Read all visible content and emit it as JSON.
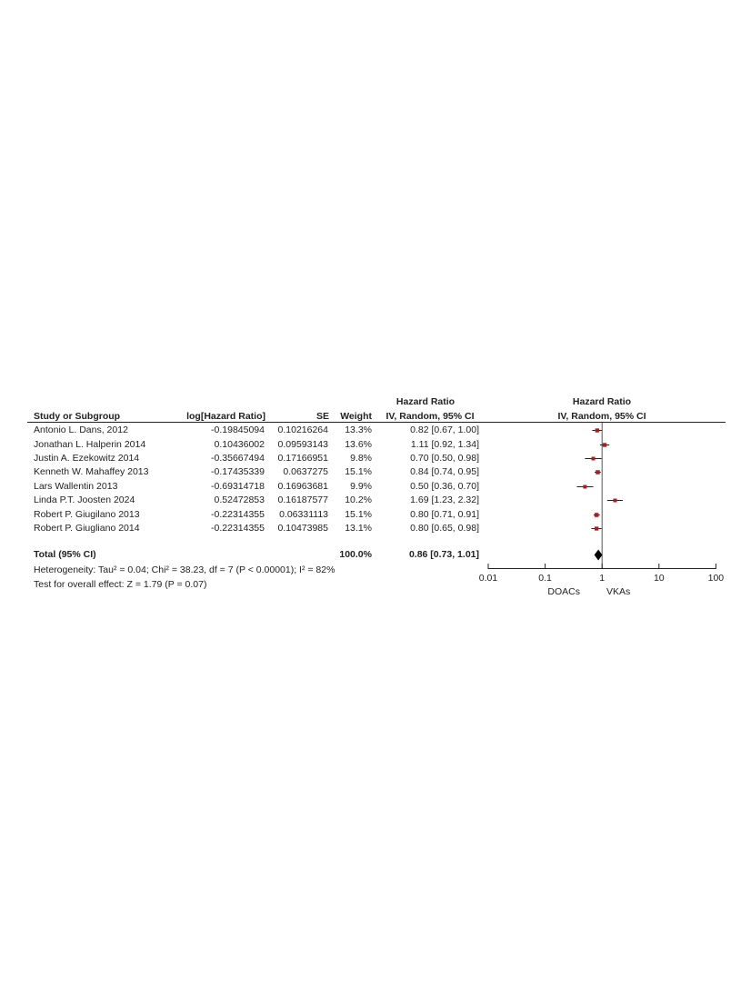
{
  "headers": {
    "study": "Study or Subgroup",
    "log_hr": "log[Hazard Ratio]",
    "se": "SE",
    "weight": "Weight",
    "hr_col_line1": "Hazard Ratio",
    "hr_col_line2": "IV, Random, 95% CI",
    "plot_line1": "Hazard Ratio",
    "plot_line2": "IV, Random, 95% CI"
  },
  "studies": [
    {
      "name": "Antonio L. Dans, 2012",
      "log_hr": "-0.19845094",
      "se": "0.10216264",
      "weight": "13.3%",
      "ci_text": "0.82 [0.67, 1.00]"
    },
    {
      "name": "Jonathan L. Halperin 2014",
      "log_hr": "0.10436002",
      "se": "0.09593143",
      "weight": "13.6%",
      "ci_text": "1.11 [0.92, 1.34]"
    },
    {
      "name": "Justin A. Ezekowitz 2014",
      "log_hr": "-0.35667494",
      "se": "0.17166951",
      "weight": "9.8%",
      "ci_text": "0.70 [0.50, 0.98]"
    },
    {
      "name": "Kenneth W. Mahaffey 2013",
      "log_hr": "-0.17435339",
      "se": "0.0637275",
      "weight": "15.1%",
      "ci_text": "0.84 [0.74, 0.95]"
    },
    {
      "name": "Lars Wallentin 2013",
      "log_hr": "-0.69314718",
      "se": "0.16963681",
      "weight": "9.9%",
      "ci_text": "0.50 [0.36, 0.70]"
    },
    {
      "name": "Linda P.T. Joosten 2024",
      "log_hr": "0.52472853",
      "se": "0.16187577",
      "weight": "10.2%",
      "ci_text": "1.69 [1.23, 2.32]"
    },
    {
      "name": "Robert P. Giugilano 2013",
      "log_hr": "-0.22314355",
      "se": "0.06331113",
      "weight": "15.1%",
      "ci_text": "0.80 [0.71, 0.91]"
    },
    {
      "name": "Robert P. Giugliano 2014",
      "log_hr": "-0.22314355",
      "se": "0.10473985",
      "weight": "13.1%",
      "ci_text": "0.80 [0.65, 0.98]"
    }
  ],
  "total": {
    "label": "Total (95% CI)",
    "weight": "100.0%",
    "ci_text": "0.86 [0.73, 1.01]"
  },
  "heterogeneity": "Heterogeneity: Tau² = 0.04; Chi² = 38.23, df = 7 (P < 0.00001); I² = 82%",
  "overall_effect": "Test for overall effect: Z = 1.79 (P = 0.07)",
  "chart_data": {
    "type": "scatter",
    "subtype": "forest",
    "scale": "log",
    "xlim": [
      0.01,
      100
    ],
    "ticks": [
      0.01,
      0.1,
      1,
      10,
      100
    ],
    "tick_labels": [
      "0.01",
      "0.1",
      "1",
      "10",
      "100"
    ],
    "left_label": "DOACs",
    "right_label": "VKAs",
    "reference_line": 1,
    "points": [
      {
        "hr": 0.82,
        "lo": 0.67,
        "hi": 1.0,
        "weight": 13.3
      },
      {
        "hr": 1.11,
        "lo": 0.92,
        "hi": 1.34,
        "weight": 13.6
      },
      {
        "hr": 0.7,
        "lo": 0.5,
        "hi": 0.98,
        "weight": 9.8
      },
      {
        "hr": 0.84,
        "lo": 0.74,
        "hi": 0.95,
        "weight": 15.1
      },
      {
        "hr": 0.5,
        "lo": 0.36,
        "hi": 0.7,
        "weight": 9.9
      },
      {
        "hr": 1.69,
        "lo": 1.23,
        "hi": 2.32,
        "weight": 10.2
      },
      {
        "hr": 0.8,
        "lo": 0.71,
        "hi": 0.91,
        "weight": 15.1
      },
      {
        "hr": 0.8,
        "lo": 0.65,
        "hi": 0.98,
        "weight": 13.1
      }
    ],
    "pooled": {
      "hr": 0.86,
      "lo": 0.73,
      "hi": 1.01
    },
    "colors": {
      "point": "#b01c1c",
      "line": "#222222",
      "diamond": "#000000"
    }
  }
}
